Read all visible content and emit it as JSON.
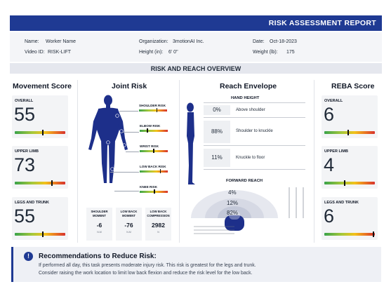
{
  "report": {
    "title": "RISK ASSESSMENT REPORT"
  },
  "info": {
    "name_label": "Name:",
    "name_value": "Worker Name",
    "video_label": "Video ID:",
    "video_value": "RISK-LIFT",
    "org_label": "Organization:",
    "org_value": "3motionAI Inc.",
    "height_label": "Height (in):",
    "height_value": "6' 0\"",
    "date_label": "Date:",
    "date_value": "Oct-18-2023",
    "weight_label": "Weight (lb):",
    "weight_value": "175"
  },
  "overview_title": "RISK AND REACH OVERVIEW",
  "movement": {
    "title": "Movement Score",
    "cards": [
      {
        "label": "OVERALL",
        "value": "55",
        "level": 0.55
      },
      {
        "label": "UPPER LIMB",
        "value": "73",
        "level": 0.73
      },
      {
        "label": "LEGS AND TRUNK",
        "value": "55",
        "level": 0.55
      }
    ]
  },
  "joint": {
    "title": "Joint Risk",
    "items": [
      {
        "label": "SHOULDER RISK",
        "level": 0.62
      },
      {
        "label": "ELBOW RISK",
        "level": 0.25
      },
      {
        "label": "WRIST RISK",
        "level": 0.48
      },
      {
        "label": "LOW BACK RISK",
        "level": 0.72
      },
      {
        "label": "KNEE RISK",
        "level": 0.5
      }
    ],
    "metrics": [
      {
        "label": "SHOULDER MOMENT",
        "value": "-6",
        "unit": "N-M"
      },
      {
        "label": "LOW BACK MOMENT",
        "value": "-76",
        "unit": "N-M"
      },
      {
        "label": "LOW BACK COMPRESSION",
        "value": "2982",
        "unit": "N"
      }
    ]
  },
  "reach": {
    "title": "Reach Envelope",
    "hand_height_title": "HAND HEIGHT",
    "hand_height": [
      {
        "pct": "0%",
        "label": "Above shoulder"
      },
      {
        "pct": "88%",
        "label": "Shoulder to knuckle"
      },
      {
        "pct": "11%",
        "label": "Knuckle to floor"
      }
    ],
    "forward_reach_title": "FORWARD REACH",
    "forward_reach": [
      "4%",
      "12%",
      "82%"
    ]
  },
  "reba": {
    "title": "REBA Score",
    "cards": [
      {
        "label": "OVERALL",
        "value": "6",
        "level": 0.47
      },
      {
        "label": "UPPER LIMB",
        "value": "4",
        "level": 0.4
      },
      {
        "label": "LEGS AND TRUNK",
        "value": "6",
        "level": 0.97
      }
    ]
  },
  "recommendations": {
    "icon": "!",
    "title": "Recommendations to Reduce Risk:",
    "line1": "If performed all day, this task presents moderate injury risk. This risk is greatest for the legs and trunk.",
    "line2": "Consider raising the work location to limit low back flexion and reduce the risk level for the low back."
  },
  "colors": {
    "primary": "#1f3a93",
    "panel": "#f3f4f6",
    "body_figure": "#1d2f8a"
  }
}
